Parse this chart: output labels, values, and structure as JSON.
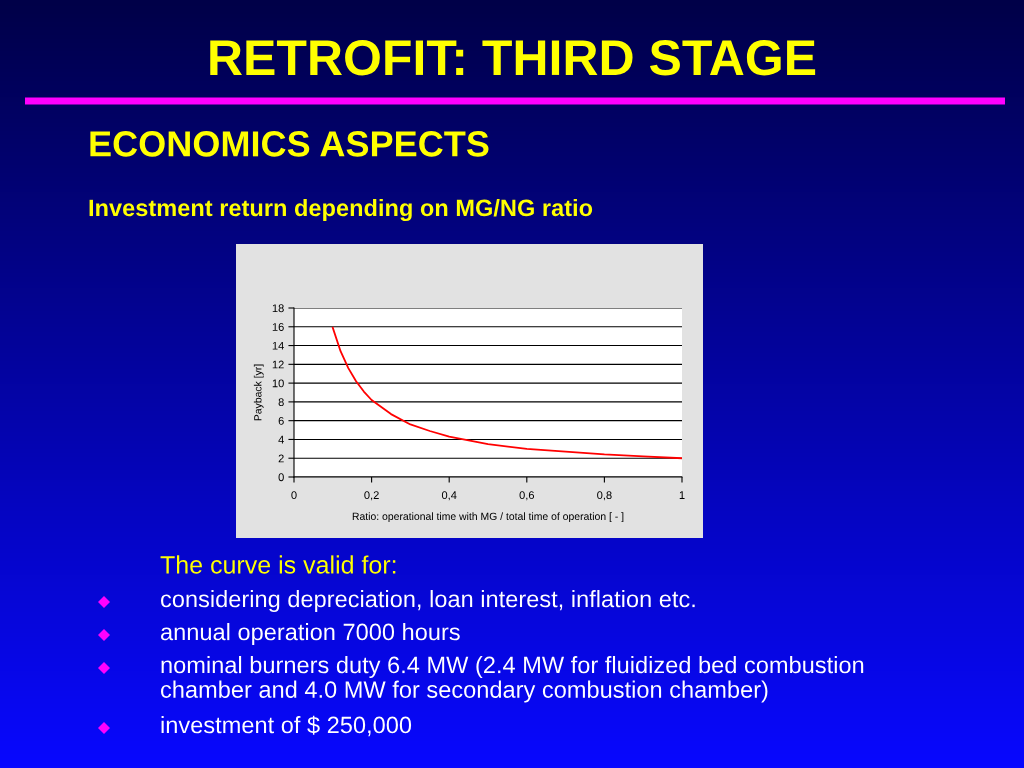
{
  "chart_data": {
    "type": "line",
    "title": "RETROFIT: THIRD STAGE",
    "subtitle": "ECONOMICS ASPECTS",
    "annotations": [
      "Investment return depending on MG/NG ratio",
      "The curve is valid for:",
      "considering depreciation, loan interest, inflation etc.",
      "annual operation 7000 hours",
      "nominal burners duty 6.4 MW (2.4 MW for fluidized bed combustion\nchamber and 4.0 MW for secondary combustion chamber)",
      "investment of $ 250,000"
    ],
    "xlabel": "Ratio: operational time with MG / total time of operation [ - ]",
    "ylabel": "Payback [yr]",
    "x": [
      0.1,
      0.12,
      0.14,
      0.16,
      0.18,
      0.2,
      0.25,
      0.3,
      0.35,
      0.4,
      0.45,
      0.5,
      0.6,
      0.7,
      0.8,
      0.9,
      1.0
    ],
    "series": [
      {
        "color": "#ff0000",
        "values": [
          15.9,
          13.4,
          11.6,
          10.2,
          9.1,
          8.2,
          6.7,
          5.6,
          4.9,
          4.3,
          3.9,
          3.5,
          3.0,
          2.7,
          2.4,
          2.2,
          2.0
        ]
      }
    ],
    "xlim": [
      0,
      1
    ],
    "ylim": [
      0,
      18
    ],
    "xticks": [
      0,
      {
        "value": 0.2,
        "label": "0,2"
      },
      {
        "value": 0.4,
        "label": "0,4"
      },
      {
        "value": 0.6,
        "label": "0,6"
      },
      {
        "value": 0.8,
        "label": "0,8"
      },
      1
    ],
    "yticks": [
      0,
      2,
      4,
      6,
      8,
      10,
      12,
      14,
      16,
      18
    ],
    "grid": "y",
    "line_style": "solid"
  }
}
